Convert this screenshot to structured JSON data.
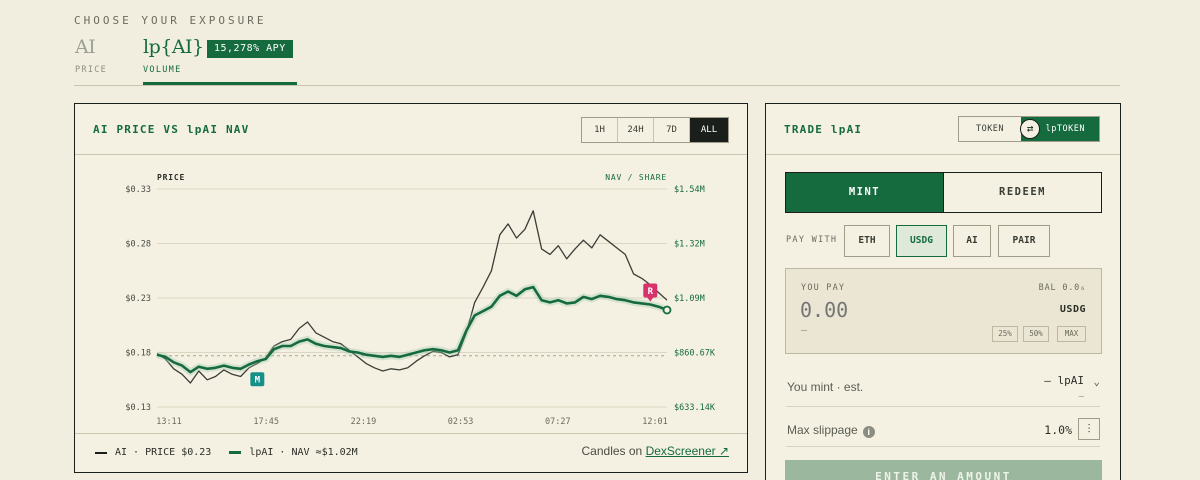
{
  "header": {
    "eyebrow": "CHOOSE YOUR EXPOSURE",
    "options": [
      {
        "label": "AI",
        "sublabel": "PRICE",
        "selected": false
      },
      {
        "label": "lp{AI}",
        "sublabel": "VOLUME",
        "selected": true,
        "badge": "15,278% APY"
      }
    ]
  },
  "chart_panel": {
    "title": "AI PRICE VS lpAI NAV",
    "ranges": [
      "1H",
      "24H",
      "7D",
      "ALL"
    ],
    "selected_range": "ALL",
    "legend": [
      {
        "label": "AI · PRICE $0.23"
      },
      {
        "label": "lpAI · NAV ≈$1.02M"
      }
    ],
    "candles_prefix": "Candles on",
    "candles_link": "DexScreener ↗"
  },
  "chart_data": {
    "type": "line",
    "left_axis_label": "PRICE",
    "right_axis_label": "NAV / SHARE",
    "x_ticks": [
      "13:11",
      "17:45",
      "22:19",
      "02:53",
      "07:27",
      "12:01"
    ],
    "y_left_ticks": [
      "$0.33",
      "$0.28",
      "$0.23",
      "$0.18",
      "$0.13"
    ],
    "y_right_ticks": [
      "$1.54M",
      "$1.32M",
      "$1.09M",
      "$860.67K",
      "$633.14K"
    ],
    "ylim_left": [
      0.13,
      0.33
    ],
    "ylim_right": [
      633140,
      1540000
    ],
    "reference_line": 0.177,
    "series": [
      {
        "name": "AI",
        "axis": "left",
        "color": "#3b3d36",
        "values": [
          0.179,
          0.174,
          0.165,
          0.16,
          0.152,
          0.163,
          0.155,
          0.158,
          0.164,
          0.16,
          0.158,
          0.166,
          0.17,
          0.175,
          0.186,
          0.19,
          0.192,
          0.202,
          0.208,
          0.198,
          0.194,
          0.19,
          0.188,
          0.182,
          0.176,
          0.17,
          0.166,
          0.163,
          0.165,
          0.164,
          0.166,
          0.172,
          0.177,
          0.181,
          0.18,
          0.176,
          0.178,
          0.198,
          0.226,
          0.24,
          0.255,
          0.288,
          0.298,
          0.285,
          0.293,
          0.31,
          0.275,
          0.27,
          0.278,
          0.266,
          0.275,
          0.283,
          0.276,
          0.288,
          0.282,
          0.276,
          0.27,
          0.252,
          0.248,
          0.242,
          0.235,
          0.228
        ]
      },
      {
        "name": "lpAI",
        "axis": "left",
        "color": "#156b3e",
        "values": [
          0.178,
          0.176,
          0.171,
          0.168,
          0.162,
          0.167,
          0.165,
          0.166,
          0.168,
          0.166,
          0.165,
          0.169,
          0.172,
          0.174,
          0.183,
          0.186,
          0.186,
          0.19,
          0.192,
          0.188,
          0.186,
          0.185,
          0.184,
          0.181,
          0.18,
          0.178,
          0.177,
          0.176,
          0.177,
          0.176,
          0.178,
          0.18,
          0.182,
          0.183,
          0.182,
          0.18,
          0.182,
          0.2,
          0.214,
          0.218,
          0.222,
          0.232,
          0.236,
          0.232,
          0.238,
          0.24,
          0.228,
          0.226,
          0.228,
          0.225,
          0.226,
          0.231,
          0.229,
          0.232,
          0.231,
          0.229,
          0.228,
          0.226,
          0.225,
          0.224,
          0.222,
          0.219
        ]
      }
    ],
    "markers": [
      {
        "label": "M",
        "color": "#16918a",
        "index": 12
      },
      {
        "label": "R",
        "color": "#d6336c",
        "index": 59
      }
    ],
    "grid": true
  },
  "trade_panel": {
    "title": "TRADE lpAI",
    "toggle": {
      "left": "TOKEN",
      "right": "lpTOKEN",
      "selected": "lpTOKEN"
    },
    "modes": [
      "MINT",
      "REDEEM"
    ],
    "selected_mode": "MINT",
    "pay_with_label": "PAY WITH",
    "pay_options": [
      "ETH",
      "USDG",
      "AI",
      "PAIR"
    ],
    "selected_pay": "USDG",
    "you_pay": {
      "label": "YOU PAY",
      "balance": "BAL 0.0₆",
      "amount_placeholder": "0.00",
      "token": "USDG",
      "sub_value": "—",
      "percent_buttons": [
        "25%",
        "50%",
        "MAX"
      ]
    },
    "you_mint": {
      "label": "You mint · est.",
      "value": "— lpAI",
      "sub": "—"
    },
    "slippage": {
      "label": "Max slippage",
      "value": "1.0%"
    },
    "cta": "ENTER AN AMOUNT"
  },
  "colors": {
    "accent": "#156b3e",
    "background": "#f2eedf",
    "ink": "#1b1f1b",
    "marker_mint": "#16918a",
    "marker_redeem": "#d6336c"
  }
}
